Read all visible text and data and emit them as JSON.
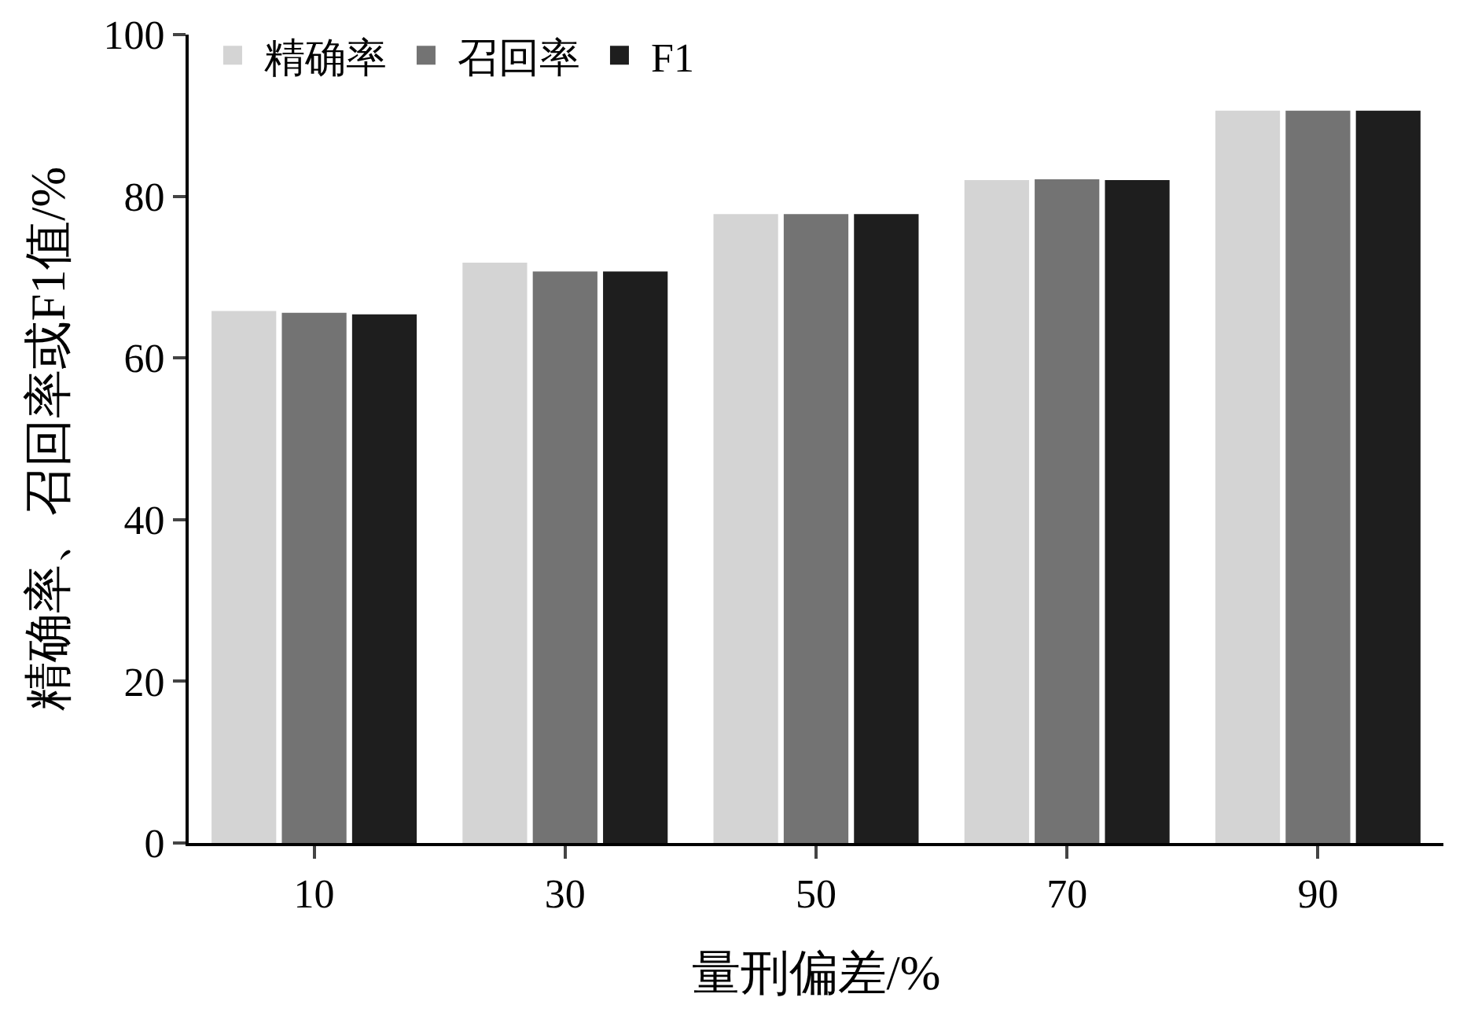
{
  "chart_data": {
    "type": "bar",
    "xlabel": "量刑偏差/%",
    "ylabel": "精确率、召回率或F1值/%",
    "categories": [
      "10",
      "30",
      "50",
      "70",
      "90"
    ],
    "series": [
      {
        "name": "精确率",
        "color": "#d4d4d4",
        "values": [
          65.8,
          71.8,
          77.8,
          82.0,
          90.6
        ]
      },
      {
        "name": "召回率",
        "color": "#737373",
        "values": [
          65.6,
          70.7,
          77.8,
          82.1,
          90.6
        ]
      },
      {
        "name": "F1",
        "color": "#1e1e1e",
        "values": [
          65.4,
          70.7,
          77.8,
          82.0,
          90.6
        ]
      }
    ],
    "ylim": [
      0,
      100
    ],
    "yticks": [
      0,
      20,
      40,
      60,
      80,
      100
    ],
    "grid": false,
    "legend": "top left"
  }
}
